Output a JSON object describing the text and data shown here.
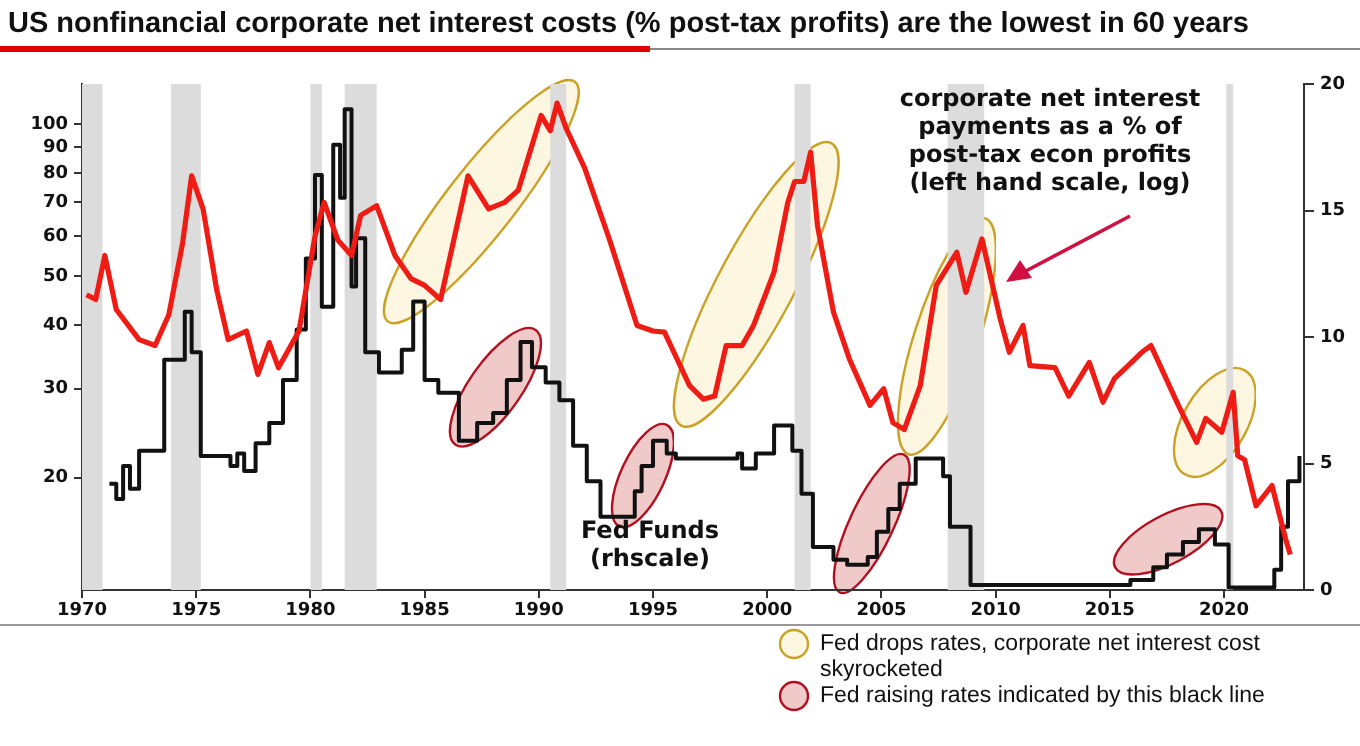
{
  "chart_data": {
    "type": "line",
    "title": "US nonfinancial corporate net interest costs (% post-tax profits) are the lowest in 60 years",
    "annotations": [
      "corporate net interest\npayments as a % of\npost-tax econ profits\n(left hand scale, log)",
      "Fed Funds\n(rhscale)",
      "Fed drops rates, corporate net interest cost skyrocketed",
      "Fed raising rates indicated by this black line"
    ],
    "xlim": [
      1970,
      2023.5
    ],
    "xticks": [
      1970,
      1975,
      1980,
      1985,
      1990,
      1995,
      2000,
      2005,
      2010,
      2015,
      2020
    ],
    "ylim": [
      12,
      120
    ],
    "yticks": [
      20,
      30,
      40,
      50,
      60,
      70,
      80,
      90,
      100
    ],
    "log": "y",
    "y2lim": [
      0,
      20
    ],
    "y2ticks": [
      0,
      5,
      10,
      15,
      20
    ],
    "grid": false,
    "legend": false,
    "marker": "none",
    "bands": [
      {
        "axis": "x",
        "from": 1970,
        "to": 1970.9,
        "color": "#dcdcdc"
      },
      {
        "axis": "x",
        "from": 1973.9,
        "to": 1975.2,
        "color": "#dcdcdc"
      },
      {
        "axis": "x",
        "from": 1980,
        "to": 1980.5,
        "color": "#dcdcdc"
      },
      {
        "axis": "x",
        "from": 1981.5,
        "to": 1982.9,
        "color": "#dcdcdc"
      },
      {
        "axis": "x",
        "from": 1990.5,
        "to": 1991.2,
        "color": "#dcdcdc"
      },
      {
        "axis": "x",
        "from": 2001.2,
        "to": 2001.9,
        "color": "#dcdcdc"
      },
      {
        "axis": "x",
        "from": 2007.9,
        "to": 2009.5,
        "color": "#dcdcdc"
      },
      {
        "axis": "x",
        "from": 2020.1,
        "to": 2020.4,
        "color": "#dcdcdc"
      }
    ],
    "series": [
      {
        "type": "line",
        "color": "#ee1c14",
        "x": [
          1970.2,
          1970.6,
          1971.0,
          1971.5,
          1972.5,
          1973.2,
          1973.8,
          1974.4,
          1974.8,
          1975.3,
          1975.9,
          1976.4,
          1977.2,
          1977.7,
          1978.2,
          1978.6,
          1979.5,
          1980.2,
          1980.6,
          1981.2,
          1981.8,
          1982.2,
          1982.9,
          1983.7,
          1984.4,
          1985.0,
          1985.7,
          1986.9,
          1987.8,
          1988.5,
          1989.1,
          1990.1,
          1990.5,
          1990.8,
          1991.2,
          1992.0,
          1993.1,
          1994.3,
          1995.0,
          1995.5,
          1996.6,
          1997.2,
          1997.7,
          1998.2,
          1998.9,
          1999.4,
          2000.3,
          2000.9,
          2001.2,
          2001.6,
          2001.9,
          2002.2,
          2002.9,
          2003.6,
          2004.5,
          2005.1,
          2005.5,
          2006.0,
          2006.7,
          2007.4,
          2008.3,
          2008.7,
          2009.4,
          2010.2,
          2010.6,
          2011.2,
          2011.5,
          2012.6,
          2013.2,
          2014.1,
          2014.7,
          2015.2,
          2015.8,
          2016.4,
          2016.8,
          2018.0,
          2018.8,
          2019.2,
          2019.9,
          2020.4,
          2020.6,
          2020.9,
          2021.4,
          2022.1,
          2022.7,
          2022.9
        ],
        "values": [
          46,
          45,
          55,
          43,
          37.5,
          36.5,
          42,
          58,
          79,
          68,
          47,
          37.5,
          39,
          32,
          37,
          33,
          39,
          60,
          70,
          59,
          55,
          66,
          69,
          55,
          49.5,
          48,
          45,
          79,
          68,
          70,
          74,
          104,
          97,
          110,
          98,
          82,
          59,
          40,
          39,
          38.8,
          30.4,
          28.6,
          29,
          36.5,
          36.5,
          40,
          51,
          70,
          77,
          77,
          88,
          63,
          42.5,
          34.3,
          27.8,
          30,
          25.7,
          24.9,
          30.4,
          48,
          55.8,
          46.5,
          59.3,
          41.2,
          35.4,
          40,
          33.3,
          33,
          29,
          33.8,
          28.2,
          31.4,
          33.3,
          35.4,
          36.5,
          27.8,
          23.5,
          26.2,
          24.6,
          29.5,
          22.1,
          21.7,
          17.6,
          19.3,
          15.1,
          14.1
        ]
      },
      {
        "type": "step",
        "axis": "y2",
        "color": "#111111",
        "x": [
          1971.2,
          1971.5,
          1971.8,
          1972.1,
          1972.5,
          1973.6,
          1974.5,
          1974.8,
          1975.2,
          1976.5,
          1976.8,
          1977.1,
          1977.6,
          1978.2,
          1978.8,
          1979.4,
          1979.8,
          1980.2,
          1980.5,
          1981.0,
          1981.3,
          1981.5,
          1981.8,
          1982.0,
          1982.4,
          1983.0,
          1984.0,
          1984.5,
          1985.0,
          1985.6,
          1986.5,
          1987.3,
          1988.0,
          1988.6,
          1989.2,
          1989.7,
          1990.3,
          1990.9,
          1991.5,
          1992.1,
          1992.7,
          1994.2,
          1994.5,
          1995.0,
          1995.6,
          1996.0,
          1998.7,
          1998.9,
          1999.5,
          2000.3,
          2001.1,
          2001.5,
          2002.0,
          2002.9,
          2003.5,
          2004.4,
          2004.8,
          2005.3,
          2005.8,
          2006.5,
          2007.7,
          2008.0,
          2008.9,
          2015.9,
          2016.9,
          2017.5,
          2018.2,
          2018.9,
          2019.6,
          2020.2,
          2022.2,
          2022.5,
          2022.8,
          2023.3
        ],
        "values": [
          4.2,
          3.6,
          4.9,
          4.0,
          5.5,
          9.1,
          11.0,
          9.4,
          5.3,
          4.9,
          5.4,
          4.7,
          5.8,
          6.6,
          8.3,
          10.3,
          13.1,
          16.4,
          11.2,
          17.6,
          15.5,
          19.0,
          12.0,
          13.9,
          9.4,
          8.6,
          9.5,
          11.4,
          8.3,
          7.8,
          5.9,
          6.6,
          7.0,
          8.3,
          9.8,
          8.8,
          8.2,
          7.5,
          5.7,
          4.3,
          2.9,
          3.9,
          4.9,
          5.9,
          5.4,
          5.2,
          5.4,
          4.8,
          5.4,
          6.5,
          5.5,
          3.8,
          1.7,
          1.2,
          1.0,
          1.3,
          2.3,
          3.2,
          4.2,
          5.2,
          4.5,
          2.5,
          0.2,
          0.4,
          0.9,
          1.4,
          1.9,
          2.4,
          1.8,
          0.1,
          0.8,
          2.5,
          4.3,
          5.3
        ]
      }
    ]
  }
}
